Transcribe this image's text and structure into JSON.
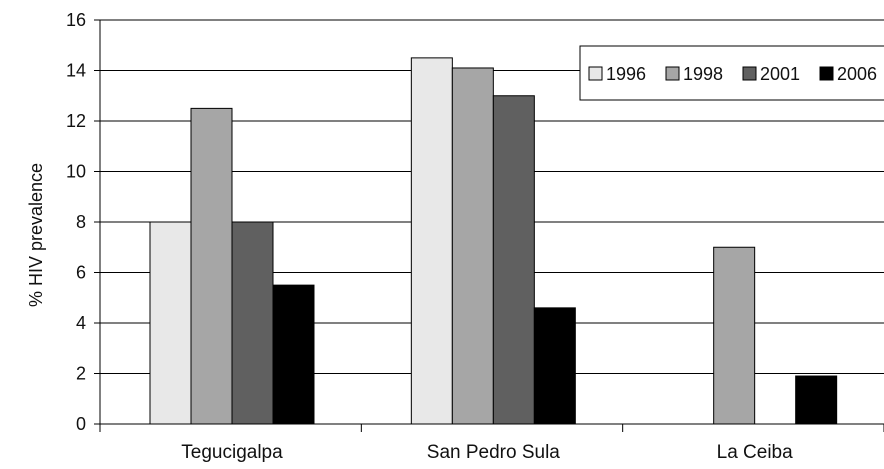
{
  "chart_data": {
    "type": "bar",
    "title": "",
    "xlabel": "",
    "ylabel": "% HIV prevalence",
    "ylim": [
      0,
      16
    ],
    "yticks": [
      0,
      2,
      4,
      6,
      8,
      10,
      12,
      14,
      16
    ],
    "grid": true,
    "legend_position": "top-right",
    "categories": [
      "Tegucigalpa",
      "San Pedro Sula",
      "La Ceiba"
    ],
    "series": [
      {
        "name": "1996",
        "color": "#e8e8e8",
        "values": [
          8.0,
          14.5,
          null
        ]
      },
      {
        "name": "1998",
        "color": "#a6a6a6",
        "values": [
          12.5,
          14.1,
          7.0
        ]
      },
      {
        "name": "2001",
        "color": "#606060",
        "values": [
          8.0,
          13.0,
          null
        ]
      },
      {
        "name": "2006",
        "color": "#000000",
        "values": [
          5.5,
          4.6,
          1.9
        ]
      }
    ]
  }
}
